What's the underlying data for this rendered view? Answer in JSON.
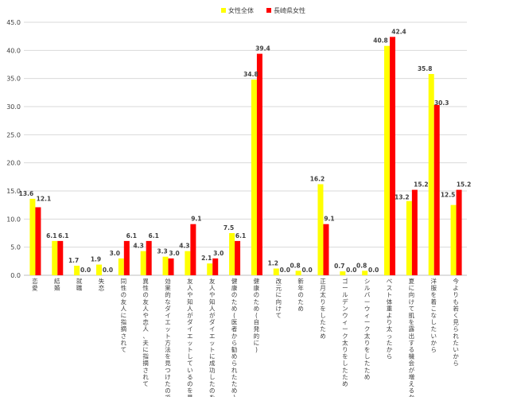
{
  "chart_data": {
    "type": "bar",
    "ylim": [
      0,
      45
    ],
    "yticks": [
      "0.0",
      "5.0",
      "10.0",
      "15.0",
      "20.0",
      "25.0",
      "30.0",
      "35.0",
      "40.0",
      "45.0"
    ],
    "grid": true,
    "legend_position": "top-center",
    "categories": [
      "恋愛",
      "結婚",
      "就職",
      "失恋",
      "同性の友人に指摘されて",
      "異性の友人や恋人、夫に指摘されて",
      "効果的なダイエット方法を見つけたので",
      "友人や知人がダイエットしているのを見て",
      "友人や知人がダイエットに成功したのを見て",
      "健康のため(医者から勧められたため)",
      "健康のため(自発的に)",
      "改元に向けて",
      "新年のため",
      "正月太りをしたため",
      "ゴールデンウィーク太りをしたため",
      "シルバーウィーク太りをしたため",
      "ベスト体重より太ったから",
      "夏に向けて肌を露出する機会が増えるから",
      "洋服を着こなしたいから",
      "今よりも若く見られたいから"
    ],
    "series": [
      {
        "name": "女性全体",
        "color": "#ffff00",
        "values": [
          13.6,
          6.1,
          1.7,
          1.9,
          3.0,
          4.3,
          3.3,
          4.3,
          2.1,
          7.5,
          34.8,
          1.2,
          0.8,
          16.2,
          0.7,
          0.8,
          40.8,
          13.2,
          35.8,
          12.5
        ],
        "labels": [
          "13.6",
          "6.1",
          "1.7",
          "1.9",
          "3.0",
          "4.3",
          "3.3",
          "4.3",
          "2.1",
          "7.5",
          "34.8",
          "1.2",
          "0.8",
          "16.2",
          "0.7",
          "0.8",
          "40.8",
          "13.2",
          "35.8",
          "12.5"
        ]
      },
      {
        "name": "長崎県女性",
        "color": "#ff0000",
        "values": [
          12.1,
          6.1,
          0.0,
          0.0,
          6.1,
          6.1,
          3.0,
          9.1,
          3.0,
          6.1,
          39.4,
          0.0,
          0.0,
          9.1,
          0.0,
          0.0,
          42.4,
          15.2,
          30.3,
          15.2
        ],
        "labels": [
          "12.1",
          "6.1",
          "0.0",
          "0.0",
          "6.1",
          "6.1",
          "3.0",
          "9.1",
          "3.0",
          "6.1",
          "39.4",
          "0.0",
          "0.0",
          "9.1",
          "0.0",
          "0.0",
          "42.4",
          "15.2",
          "30.3",
          "15.2"
        ]
      }
    ]
  }
}
